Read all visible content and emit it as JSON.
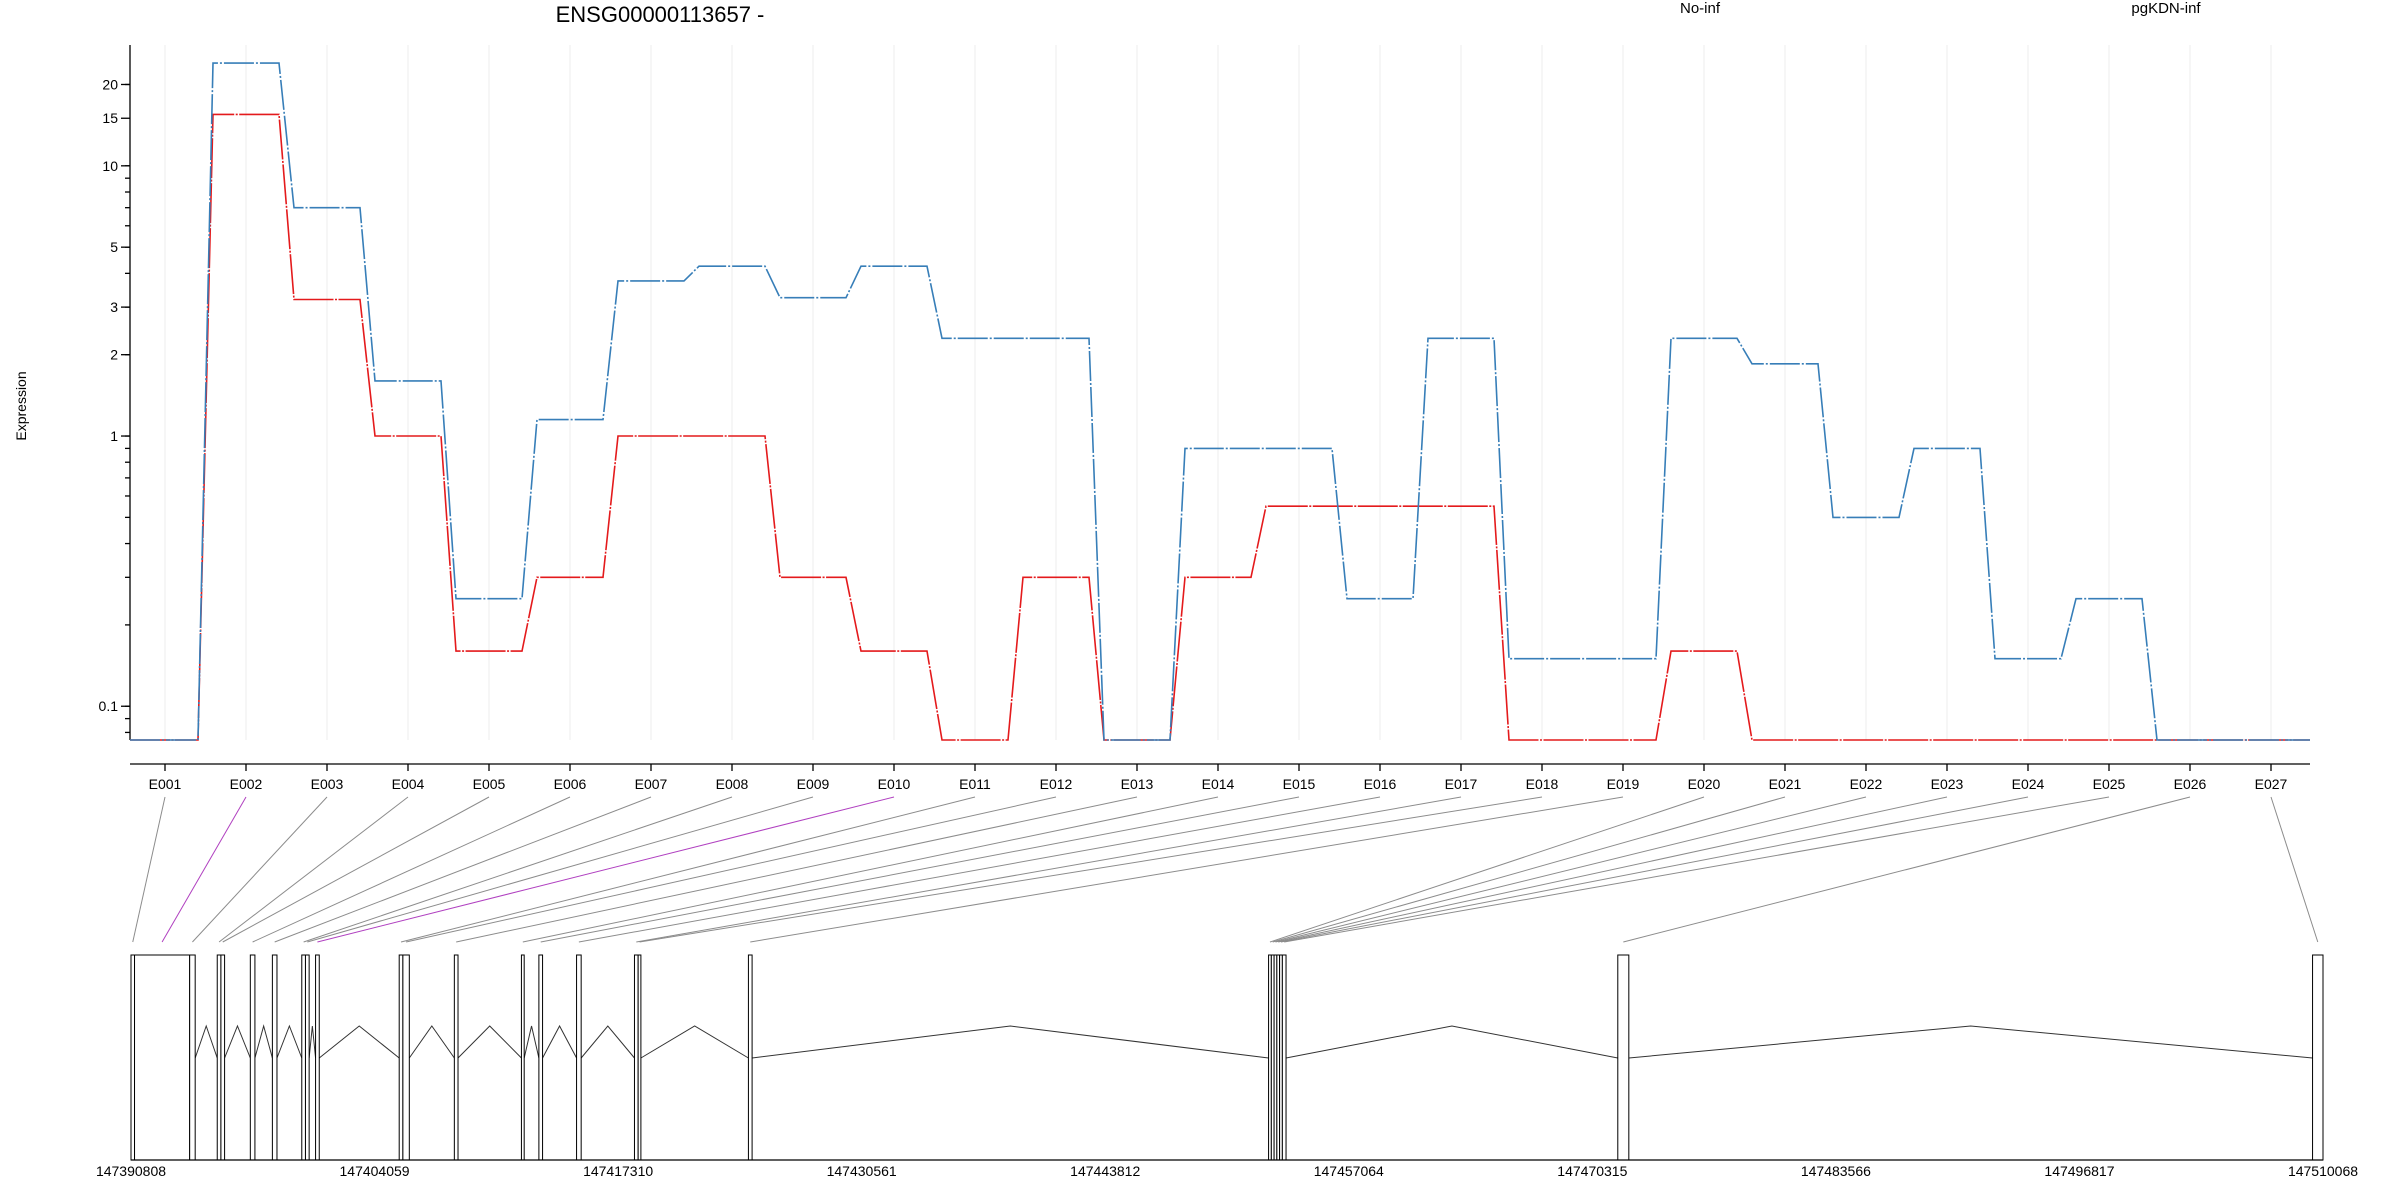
{
  "chart_data": {
    "type": "line",
    "title": "ENSG00000113657 -",
    "ylabel": "Expression",
    "y_scale": "log",
    "ylim": [
      0.075,
      28
    ],
    "y_ticks": [
      {
        "value": 0.1,
        "label": "0.1"
      },
      {
        "value": 1,
        "label": "1"
      },
      {
        "value": 2,
        "label": "2"
      },
      {
        "value": 3,
        "label": "3"
      },
      {
        "value": 5,
        "label": "5"
      },
      {
        "value": 10,
        "label": "10"
      },
      {
        "value": 15,
        "label": "15"
      },
      {
        "value": 20,
        "label": "20"
      }
    ],
    "categories": [
      "E001",
      "E002",
      "E003",
      "E004",
      "E005",
      "E006",
      "E007",
      "E008",
      "E009",
      "E010",
      "E011",
      "E012",
      "E013",
      "E014",
      "E015",
      "E016",
      "E017",
      "E018",
      "E019",
      "E020",
      "E021",
      "E022",
      "E023",
      "E024",
      "E025",
      "E026",
      "E027"
    ],
    "series": [
      {
        "name": "No-inf",
        "color": "#e41a1c",
        "values": [
          0.075,
          15.5,
          3.2,
          1.0,
          0.16,
          0.3,
          1.0,
          1.0,
          0.3,
          0.16,
          0.075,
          0.3,
          0.075,
          0.3,
          0.55,
          0.55,
          0.55,
          0.075,
          0.075,
          0.16,
          0.075,
          0.075,
          0.075,
          0.075,
          0.075,
          0.075,
          0.075
        ]
      },
      {
        "name": "pgKDN-inf",
        "color": "#377eb8",
        "values": [
          0.075,
          24.0,
          7.0,
          1.6,
          0.25,
          1.15,
          3.75,
          4.25,
          3.25,
          4.25,
          2.3,
          2.3,
          0.075,
          0.9,
          0.9,
          0.25,
          2.3,
          0.15,
          0.15,
          2.3,
          1.85,
          0.5,
          0.9,
          0.15,
          0.25,
          0.075,
          0.075
        ]
      }
    ],
    "grid": "vertical",
    "legend_position": "top-right",
    "gene_model": {
      "genomic_ticks": [
        "147390808",
        "147404059",
        "147417310",
        "147430561",
        "147443812",
        "147457064",
        "147470315",
        "147483566",
        "147496817",
        "147510068"
      ],
      "genomic_range": [
        147390808,
        147510068
      ],
      "highlighted_exons": [
        "E002",
        "E010"
      ],
      "highlight_color": "#f020e0",
      "exons": [
        {
          "id": "E001",
          "start": 147390808,
          "end": 147391000
        },
        {
          "id": "E002",
          "start": 147391000,
          "end": 147394000
        },
        {
          "id": "E003",
          "start": 147394000,
          "end": 147394300
        },
        {
          "id": "E004",
          "start": 147395500,
          "end": 147395700
        },
        {
          "id": "E005",
          "start": 147395700,
          "end": 147395900
        },
        {
          "id": "E006",
          "start": 147397300,
          "end": 147397550
        },
        {
          "id": "E007",
          "start": 147398500,
          "end": 147398750
        },
        {
          "id": "E008",
          "start": 147400100,
          "end": 147400300
        },
        {
          "id": "E009",
          "start": 147400300,
          "end": 147400500
        },
        {
          "id": "E010",
          "start": 147400850,
          "end": 147401050
        },
        {
          "id": "E011",
          "start": 147405400,
          "end": 147405600
        },
        {
          "id": "E012",
          "start": 147405600,
          "end": 147405950
        },
        {
          "id": "E013",
          "start": 147408400,
          "end": 147408600
        },
        {
          "id": "E014",
          "start": 147412050,
          "end": 147412200
        },
        {
          "id": "E015",
          "start": 147413000,
          "end": 147413200
        },
        {
          "id": "E016",
          "start": 147415050,
          "end": 147415300
        },
        {
          "id": "E017",
          "start": 147418200,
          "end": 147418400
        },
        {
          "id": "E018",
          "start": 147418400,
          "end": 147418550
        },
        {
          "id": "E019",
          "start": 147424400,
          "end": 147424600
        },
        {
          "id": "E020",
          "start": 147452700,
          "end": 147452850
        },
        {
          "id": "E021",
          "start": 147452850,
          "end": 147453000
        },
        {
          "id": "E022",
          "start": 147453000,
          "end": 147453150
        },
        {
          "id": "E023",
          "start": 147453150,
          "end": 147453300
        },
        {
          "id": "E024",
          "start": 147453300,
          "end": 147453450
        },
        {
          "id": "E025",
          "start": 147453450,
          "end": 147453650
        },
        {
          "id": "E026",
          "start": 147471700,
          "end": 147472300
        },
        {
          "id": "E027",
          "start": 147509500,
          "end": 147510068
        }
      ]
    }
  }
}
